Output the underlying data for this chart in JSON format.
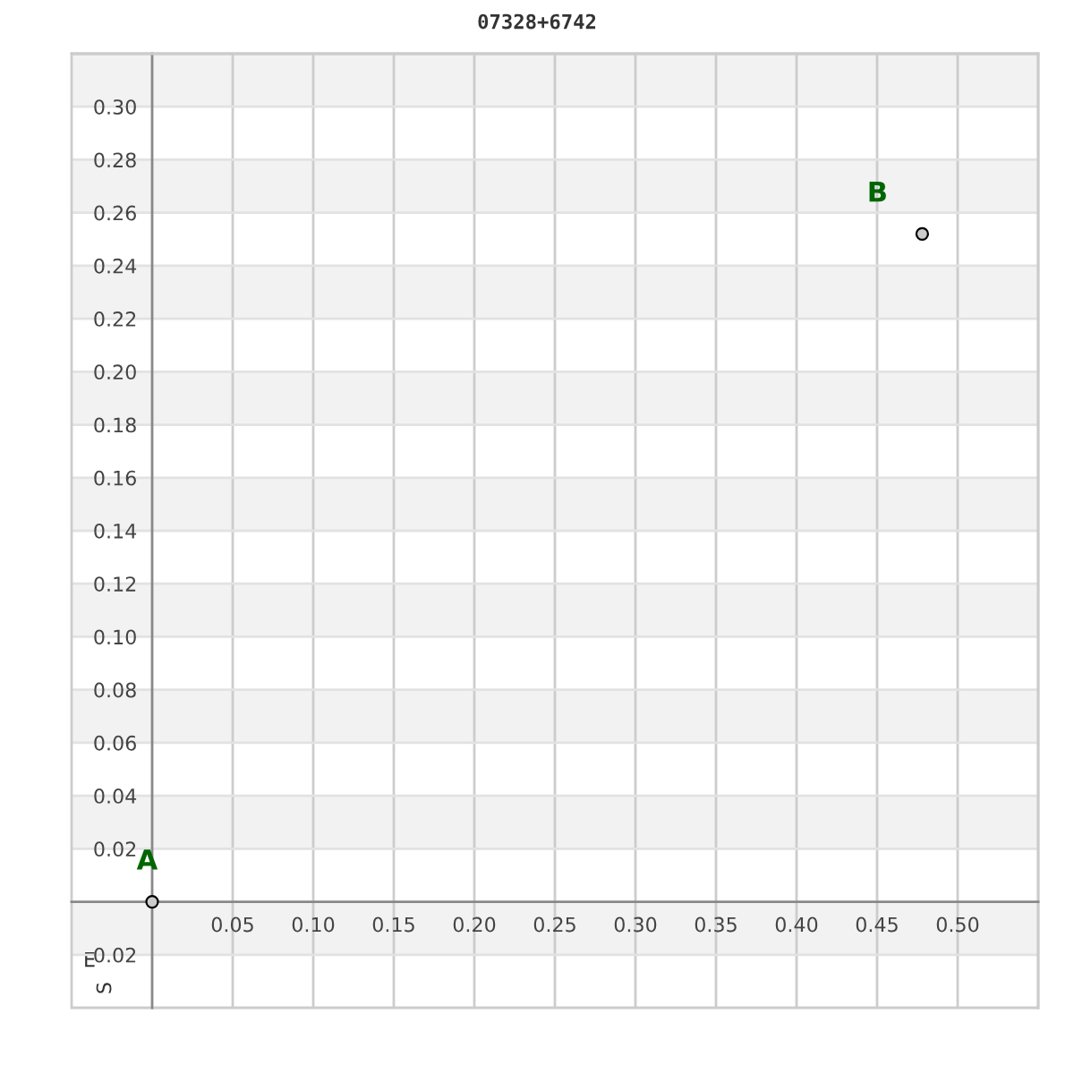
{
  "chart_data": {
    "type": "scatter",
    "title": "07328+6742",
    "xlabel": "E",
    "ylabel": "S",
    "x": [
      0,
      0.478
    ],
    "series": [
      {
        "color": "#cccccc",
        "values": [
          0,
          0.252
        ]
      }
    ],
    "marker": "circle",
    "xlim": [
      -0.05,
      0.55
    ],
    "ylim": [
      -0.04,
      0.32
    ],
    "xticks": [
      {
        "value": 0.05,
        "label": "0.05"
      },
      {
        "value": 0.1,
        "label": "0.10"
      },
      {
        "value": 0.15,
        "label": "0.15"
      },
      {
        "value": 0.2,
        "label": "0.20"
      },
      {
        "value": 0.25,
        "label": "0.25"
      },
      {
        "value": 0.3,
        "label": "0.30"
      },
      {
        "value": 0.35,
        "label": "0.35"
      },
      {
        "value": 0.4,
        "label": "0.40"
      },
      {
        "value": 0.45,
        "label": "0.45"
      },
      {
        "value": 0.5,
        "label": "0.50"
      }
    ],
    "yticks": [
      {
        "value": -0.02,
        "label": "0.02"
      },
      {
        "value": 0.02,
        "label": "0.02"
      },
      {
        "value": 0.04,
        "label": "0.04"
      },
      {
        "value": 0.06,
        "label": "0.06"
      },
      {
        "value": 0.08,
        "label": "0.08"
      },
      {
        "value": 0.1,
        "label": "0.10"
      },
      {
        "value": 0.12,
        "label": "0.12"
      },
      {
        "value": 0.14,
        "label": "0.14"
      },
      {
        "value": 0.16,
        "label": "0.16"
      },
      {
        "value": 0.18,
        "label": "0.18"
      },
      {
        "value": 0.2,
        "label": "0.20"
      },
      {
        "value": 0.22,
        "label": "0.22"
      },
      {
        "value": 0.24,
        "label": "0.24"
      },
      {
        "value": 0.26,
        "label": "0.26"
      },
      {
        "value": 0.28,
        "label": "0.28"
      },
      {
        "value": 0.3,
        "label": "0.30"
      }
    ],
    "grid": true,
    "annotations": [
      {
        "text": "A",
        "x": 0,
        "y": 0
      },
      {
        "text": "B",
        "x": 0.478,
        "y": 0.252
      }
    ],
    "bands": [
      {
        "axis": "y",
        "from": -0.02,
        "to": 0,
        "color": "#f2f2f2"
      },
      {
        "axis": "y",
        "from": 0.02,
        "to": 0.04,
        "color": "#f2f2f2"
      },
      {
        "axis": "y",
        "from": 0.06,
        "to": 0.08,
        "color": "#f2f2f2"
      },
      {
        "axis": "y",
        "from": 0.1,
        "to": 0.12,
        "color": "#f2f2f2"
      },
      {
        "axis": "y",
        "from": 0.14,
        "to": 0.16,
        "color": "#f2f2f2"
      },
      {
        "axis": "y",
        "from": 0.18,
        "to": 0.2,
        "color": "#f2f2f2"
      },
      {
        "axis": "y",
        "from": 0.22,
        "to": 0.24,
        "color": "#f2f2f2"
      },
      {
        "axis": "y",
        "from": 0.26,
        "to": 0.28,
        "color": "#f2f2f2"
      },
      {
        "axis": "y",
        "from": 0.3,
        "to": 0.32,
        "color": "#f2f2f2"
      }
    ]
  }
}
